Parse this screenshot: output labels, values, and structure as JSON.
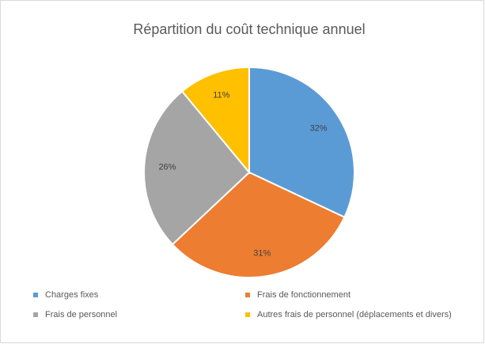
{
  "chart_data": {
    "type": "pie",
    "title": "Répartition du coût technique annuel",
    "categories": [
      "Charges fixes",
      "Frais de fonctionnement",
      "Frais de personnel",
      "Autres frais de personnel (déplacements et divers)"
    ],
    "values": [
      32,
      31,
      26,
      11
    ],
    "value_labels": [
      "32%",
      "31%",
      "26%",
      "11%"
    ],
    "colors": [
      "#5b9bd5",
      "#ed7d31",
      "#a5a5a5",
      "#ffc000"
    ],
    "legend": "bottom"
  }
}
